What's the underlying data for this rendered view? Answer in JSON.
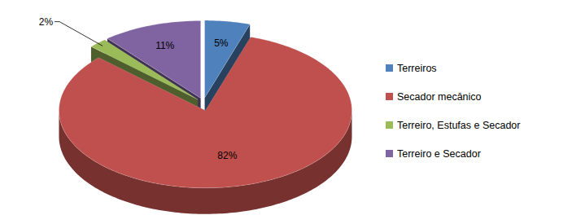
{
  "chart_data": {
    "type": "pie",
    "categories": [
      "Terreiros",
      "Secador mecânico",
      "Terreiro, Estufas e Secador",
      "Terreiro e Secador"
    ],
    "values": [
      5,
      82,
      2,
      11
    ],
    "value_labels": [
      "5%",
      "82%",
      "2%",
      "11%"
    ],
    "colors": [
      "#4f81bd",
      "#c0504d",
      "#9bbb59",
      "#8064a2"
    ],
    "data_labels": true,
    "legend": "right"
  }
}
